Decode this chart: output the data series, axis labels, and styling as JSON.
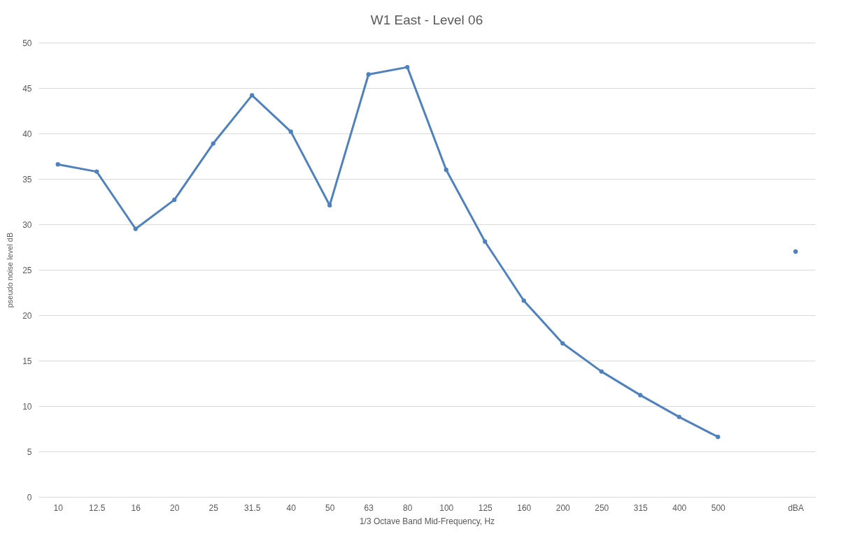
{
  "chart_data": {
    "type": "line",
    "title": "W1 East - Level 06",
    "xlabel": "1/3 Octave Band Mid-Frequency, Hz",
    "ylabel": "pseudo noise level dB",
    "categories": [
      "10",
      "12.5",
      "16",
      "20",
      "25",
      "31.5",
      "40",
      "50",
      "63",
      "80",
      "100",
      "125",
      "160",
      "200",
      "250",
      "315",
      "400",
      "500",
      null,
      "dBA"
    ],
    "series": [
      {
        "color": "#4f81bd",
        "values": [
          36.6,
          35.8,
          29.5,
          32.7,
          38.9,
          44.2,
          40.2,
          32.1,
          46.5,
          47.3,
          36.0,
          28.1,
          21.6,
          16.9,
          13.8,
          11.2,
          8.8,
          6.6,
          null,
          27.0
        ]
      }
    ],
    "ylim": [
      0,
      50
    ],
    "yticks": [
      0,
      5,
      10,
      15,
      20,
      25,
      30,
      35,
      40,
      45,
      50
    ],
    "grid": "y",
    "marker": "circle",
    "line_style": "solid"
  }
}
